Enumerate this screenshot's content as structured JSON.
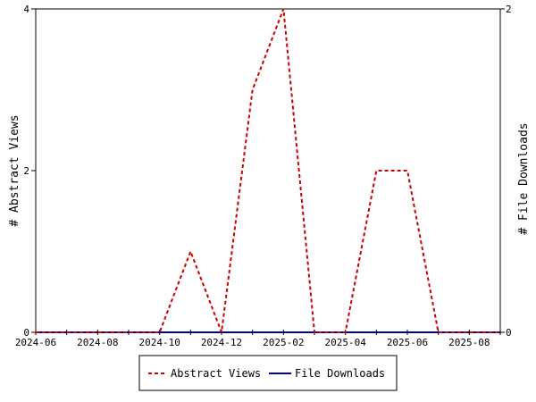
{
  "chart_data": {
    "type": "line",
    "x": [
      "2024-06",
      "2024-07",
      "2024-08",
      "2024-09",
      "2024-10",
      "2024-11",
      "2024-12",
      "2025-01",
      "2025-02",
      "2025-03",
      "2025-04",
      "2025-05",
      "2025-06",
      "2025-07",
      "2025-08",
      "2025-09"
    ],
    "x_tick_labels": [
      "2024-06",
      "2024-08",
      "2024-10",
      "2024-12",
      "2025-02",
      "2025-04",
      "2025-06",
      "2025-08"
    ],
    "series": [
      {
        "name": "Abstract Views",
        "axis": "left",
        "color": "#cc0000",
        "style": "dashed",
        "values": [
          0,
          0,
          0,
          0,
          0,
          1,
          0,
          3,
          4,
          0,
          0,
          2,
          2,
          0,
          0,
          0
        ]
      },
      {
        "name": "File Downloads",
        "axis": "right",
        "color": "#000099",
        "style": "solid",
        "values": [
          0,
          0,
          0,
          0,
          0,
          0,
          0,
          0,
          0,
          0,
          0,
          0,
          0,
          0,
          0,
          0
        ]
      }
    ],
    "ylabel": "# Abstract Views",
    "ylabel_right": "# File Downloads",
    "ylim": [
      0,
      4
    ],
    "ylim_right": [
      0,
      2
    ],
    "y_ticks": [
      "0",
      "2",
      "4"
    ],
    "y_ticks_right": [
      "0",
      "2"
    ],
    "grid": false,
    "legend_position": "bottom"
  }
}
